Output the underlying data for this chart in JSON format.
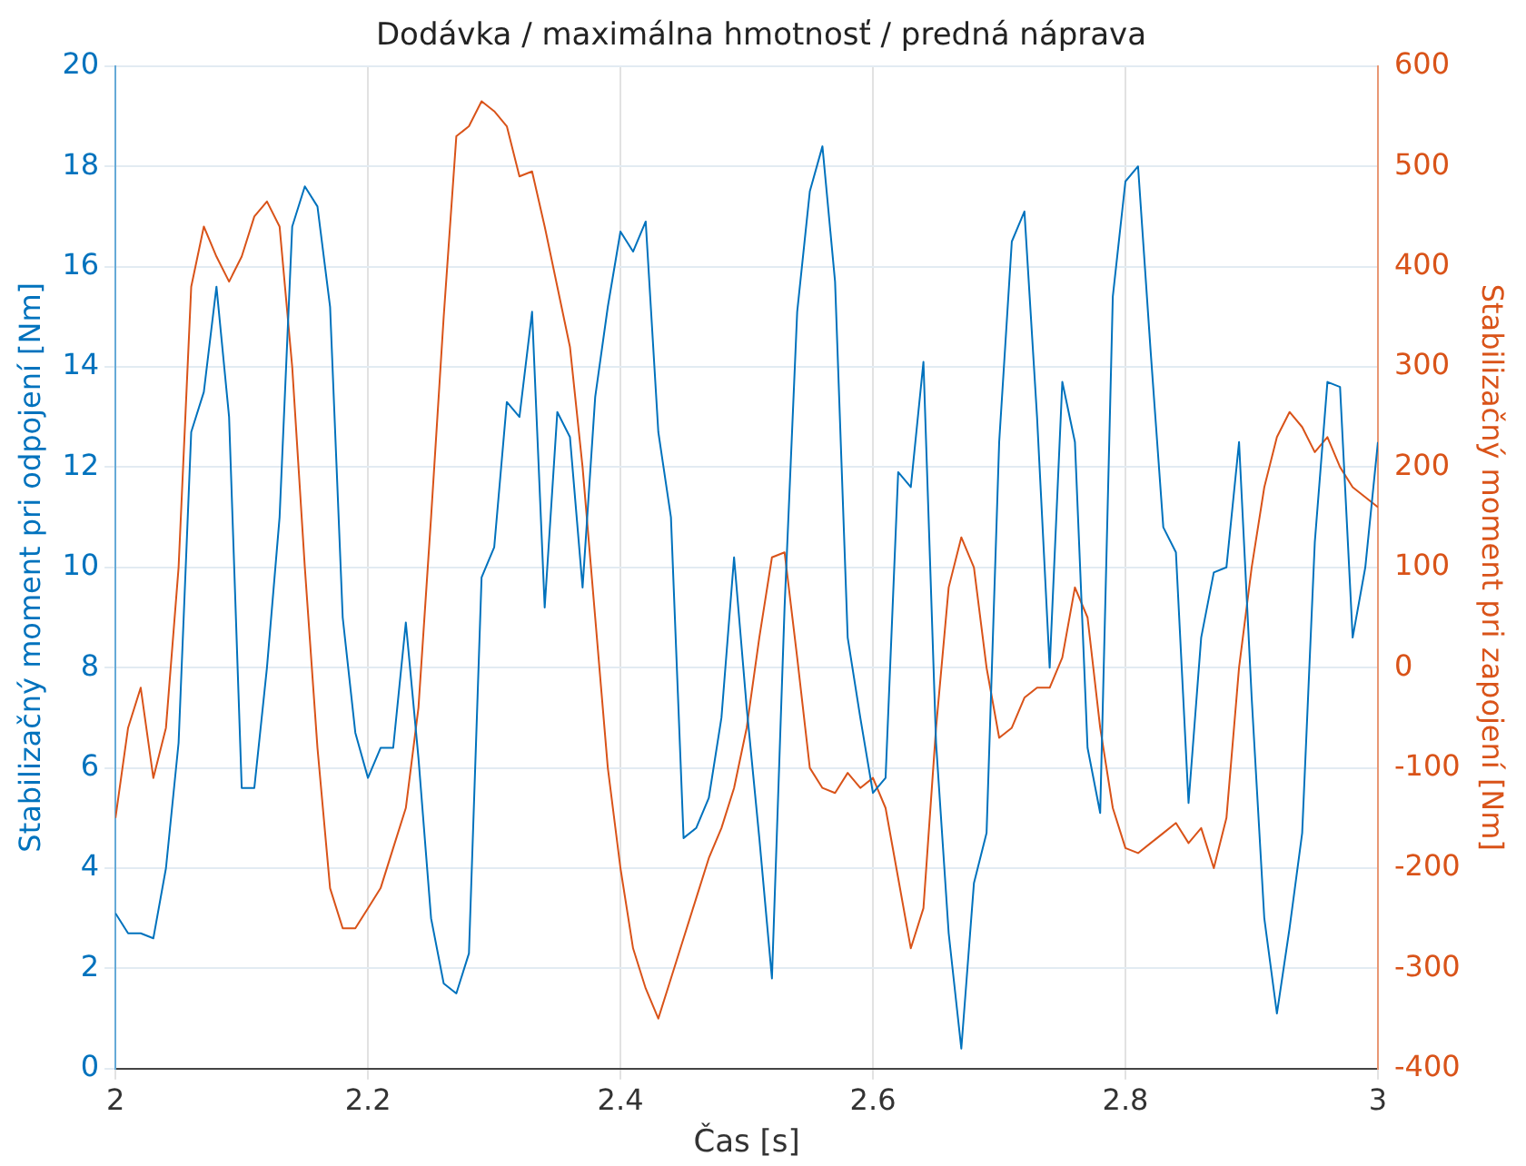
{
  "chart_data": {
    "type": "line",
    "title": "Dodávka / maximálna hmotnosť / predná náprava",
    "xlabel": "Čas [s]",
    "ylabel": "Stabilizačný moment pri odpojení [Nm]",
    "y2label": "Stabilizačný moment pri zapojení [Nm]",
    "xlim": [
      2,
      3
    ],
    "xticks": [
      2,
      2.2,
      2.4,
      2.6,
      2.8,
      3
    ],
    "ylim": [
      0,
      20
    ],
    "yticks": [
      0,
      2,
      4,
      6,
      8,
      10,
      12,
      14,
      16,
      18,
      20
    ],
    "y2lim": [
      -400,
      600
    ],
    "y2ticks": [
      -400,
      -300,
      -200,
      -100,
      0,
      100,
      200,
      300,
      400,
      500,
      600
    ],
    "grid": true,
    "legend": false,
    "series": [
      {
        "color": "#0072bd",
        "x": [
          2,
          2.01,
          2.02,
          2.03,
          2.04,
          2.05,
          2.06,
          2.07,
          2.08,
          2.09,
          2.1,
          2.11,
          2.12,
          2.13,
          2.14,
          2.15,
          2.16,
          2.17,
          2.18,
          2.19,
          2.2,
          2.21,
          2.22,
          2.23,
          2.24,
          2.25,
          2.26,
          2.27,
          2.28,
          2.29,
          2.3,
          2.31,
          2.32,
          2.33,
          2.34,
          2.35,
          2.36,
          2.37,
          2.38,
          2.39,
          2.4,
          2.41,
          2.42,
          2.43,
          2.44,
          2.45,
          2.46,
          2.47,
          2.48,
          2.49,
          2.5,
          2.51,
          2.52,
          2.53,
          2.54,
          2.55,
          2.56,
          2.57,
          2.58,
          2.59,
          2.6,
          2.61,
          2.62,
          2.63,
          2.64,
          2.65,
          2.66,
          2.67,
          2.68,
          2.69,
          2.7,
          2.71,
          2.72,
          2.73,
          2.74,
          2.75,
          2.76,
          2.77,
          2.78,
          2.79,
          2.8,
          2.81,
          2.82,
          2.83,
          2.84,
          2.85,
          2.86,
          2.87,
          2.88,
          2.89,
          2.9,
          2.91,
          2.92,
          2.93,
          2.94,
          2.95,
          2.96,
          2.97,
          2.98,
          2.99,
          3
        ],
        "values": [
          3.1,
          2.7,
          2.7,
          2.6,
          4.0,
          6.5,
          12.7,
          13.5,
          15.6,
          13,
          5.6,
          5.6,
          8,
          11,
          16.8,
          17.6,
          17.2,
          15.2,
          9,
          6.7,
          5.8,
          6.4,
          6.4,
          8.9,
          6.2,
          3,
          1.7,
          1.5,
          2.3,
          9.8,
          10.4,
          13.3,
          13,
          15.1,
          9.2,
          13.1,
          12.6,
          9.6,
          13.4,
          15.2,
          16.7,
          16.3,
          16.9,
          12.7,
          11,
          4.6,
          4.8,
          5.4,
          7,
          10.2,
          7.2,
          4.6,
          1.8,
          9.2,
          15.1,
          17.5,
          18.4,
          15.7,
          8.6,
          7,
          5.5,
          5.8,
          11.9,
          11.6,
          14.1,
          6.5,
          2.7,
          0.4,
          3.7,
          4.7,
          12.5,
          16.5,
          17.1,
          13,
          8,
          13.7,
          12.5,
          6.4,
          5.1,
          15.4,
          17.7,
          18,
          14.3,
          10.8,
          10.3,
          5.3,
          8.6,
          9.9,
          10,
          12.5,
          7.4,
          3,
          1.1,
          2.8,
          4.7,
          10.5,
          13.7,
          13.6,
          8.6,
          10,
          12.5
        ]
      },
      {
        "color": "#d95319",
        "axis": "y2",
        "x": [
          2,
          2.01,
          2.02,
          2.03,
          2.04,
          2.05,
          2.06,
          2.07,
          2.08,
          2.09,
          2.1,
          2.11,
          2.12,
          2.13,
          2.14,
          2.15,
          2.16,
          2.17,
          2.18,
          2.19,
          2.2,
          2.21,
          2.22,
          2.23,
          2.24,
          2.25,
          2.26,
          2.27,
          2.28,
          2.29,
          2.3,
          2.31,
          2.32,
          2.33,
          2.34,
          2.35,
          2.36,
          2.37,
          2.38,
          2.39,
          2.4,
          2.41,
          2.42,
          2.43,
          2.44,
          2.45,
          2.46,
          2.47,
          2.48,
          2.49,
          2.5,
          2.51,
          2.52,
          2.53,
          2.54,
          2.55,
          2.56,
          2.57,
          2.58,
          2.59,
          2.6,
          2.61,
          2.62,
          2.63,
          2.64,
          2.65,
          2.66,
          2.67,
          2.68,
          2.69,
          2.7,
          2.71,
          2.72,
          2.73,
          2.74,
          2.75,
          2.76,
          2.77,
          2.78,
          2.79,
          2.8,
          2.81,
          2.82,
          2.83,
          2.84,
          2.85,
          2.86,
          2.87,
          2.88,
          2.89,
          2.9,
          2.91,
          2.92,
          2.93,
          2.94,
          2.95,
          2.96,
          2.97,
          2.98,
          3
        ],
        "values": [
          -150,
          -60,
          -20,
          -110,
          -60,
          100,
          380,
          440,
          410,
          385,
          410,
          450,
          465,
          440,
          300,
          100,
          -80,
          -220,
          -260,
          -260,
          -240,
          -220,
          -180,
          -140,
          -40,
          150,
          350,
          530,
          540,
          565,
          555,
          540,
          490,
          495,
          440,
          380,
          320,
          200,
          50,
          -100,
          -200,
          -280,
          -320,
          -350,
          -310,
          -270,
          -230,
          -190,
          -160,
          -120,
          -60,
          30,
          110,
          115,
          10,
          -100,
          -120,
          -125,
          -105,
          -120,
          -110,
          -140,
          -210,
          -280,
          -240,
          -60,
          80,
          130,
          100,
          0,
          -70,
          -60,
          -30,
          -20,
          -20,
          10,
          80,
          50,
          -60,
          -140,
          -180,
          -185,
          -175,
          -165,
          -155,
          -175,
          -160,
          -200,
          -150,
          0,
          100,
          180,
          230,
          255,
          240,
          215,
          230,
          200,
          180,
          160
        ]
      }
    ]
  }
}
